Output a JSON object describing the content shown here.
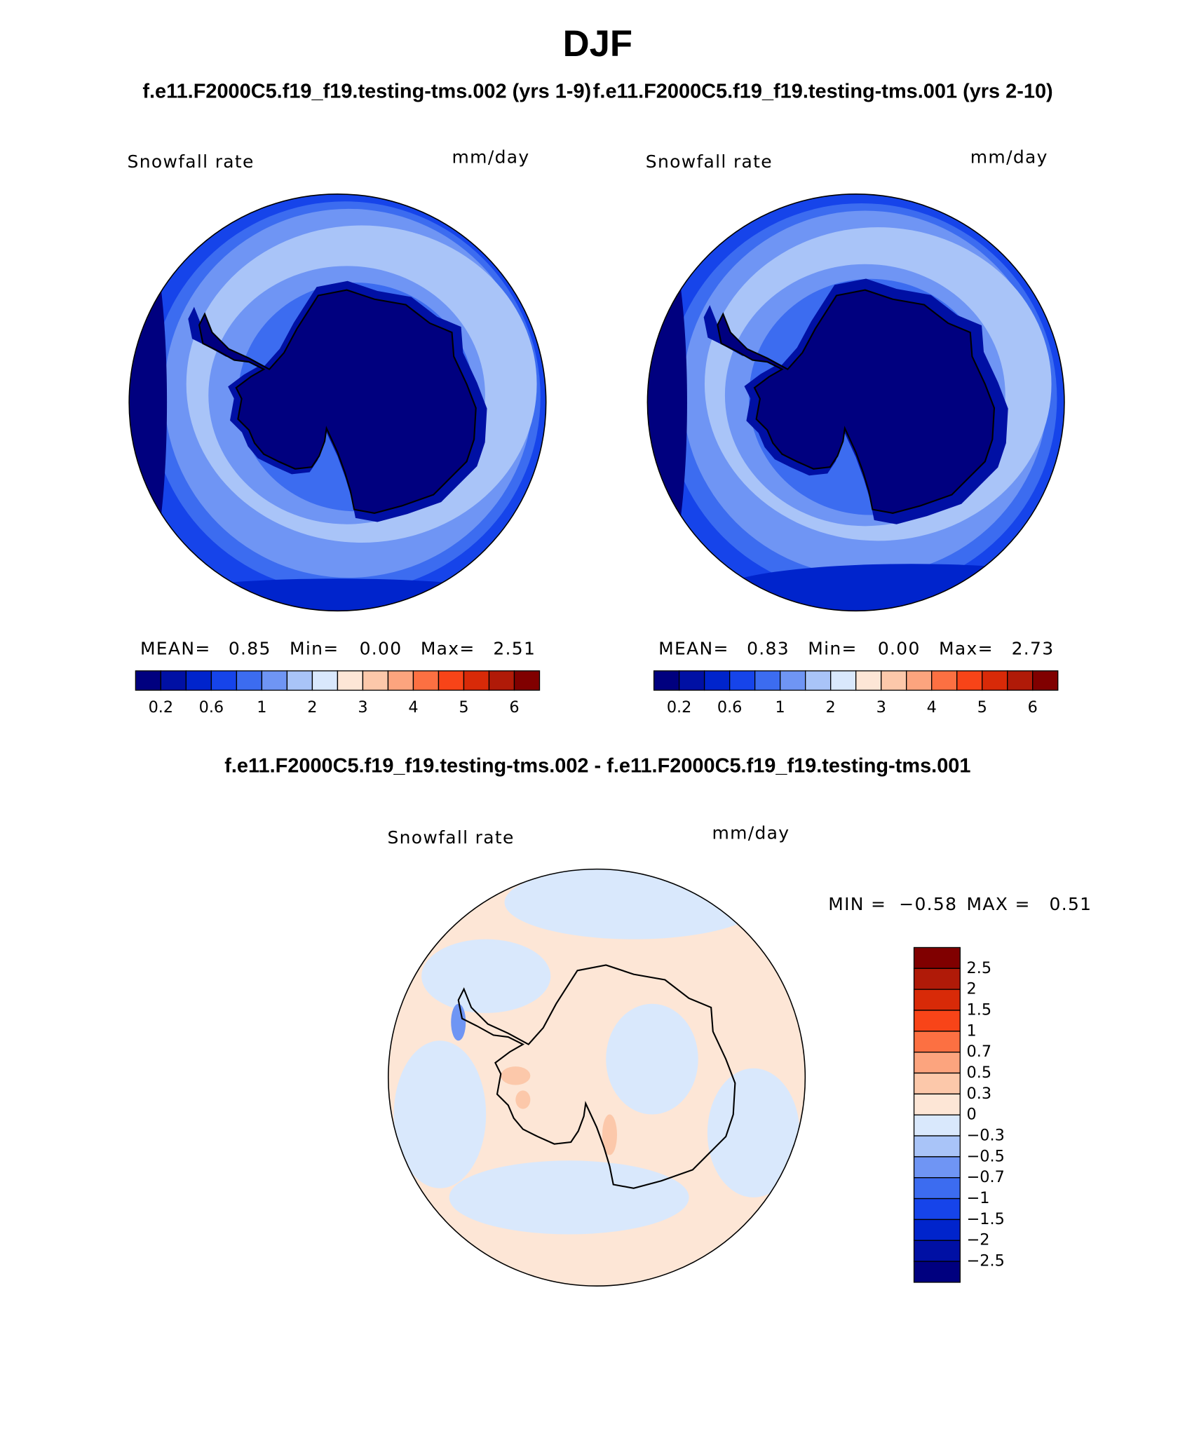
{
  "title": "DJF",
  "subtitle_left": "f.e11.F2000C5.f19_f19.testing-tms.002 (yrs 1-9)",
  "subtitle_right": "f.e11.F2000C5.f19_f19.testing-tms.001 (yrs 2-10)",
  "panels": [
    {
      "variable": "Snowfall rate",
      "units": "mm/day",
      "stats": [
        {
          "label": "MEAN=",
          "value": "0.85"
        },
        {
          "label": "Min=",
          "value": "0.00"
        },
        {
          "label": "Max=",
          "value": "2.51"
        }
      ]
    },
    {
      "variable": "Snowfall rate",
      "units": "mm/day",
      "stats": [
        {
          "label": "MEAN=",
          "value": "0.83"
        },
        {
          "label": "Min=",
          "value": "0.00"
        },
        {
          "label": "Max=",
          "value": "2.73"
        }
      ]
    }
  ],
  "colorbar": {
    "colors": [
      "#00007f",
      "#0010a4",
      "#0024cc",
      "#1644ea",
      "#3c6cf0",
      "#6f95f4",
      "#a9c4f8",
      "#d9e8fc",
      "#fde6d6",
      "#fcc8aa",
      "#fca47e",
      "#fc7042",
      "#f84418",
      "#d82a08",
      "#b01a08",
      "#800000"
    ],
    "labels": [
      "0.2",
      "0.6",
      "1",
      "2",
      "3",
      "4",
      "5",
      "6"
    ]
  },
  "diff": {
    "title": "f.e11.F2000C5.f19_f19.testing-tms.002 - f.e11.F2000C5.f19_f19.testing-tms.001",
    "variable": "Snowfall rate",
    "units": "mm/day",
    "min_label": "MIN =",
    "min": "−0.58",
    "max_label": "MAX =",
    "max": "0.51",
    "colorbar": {
      "colors": [
        "#800000",
        "#b01a08",
        "#d82a08",
        "#f84418",
        "#fc7042",
        "#fca47e",
        "#fcc8aa",
        "#fde6d6",
        "#d9e8fc",
        "#a9c4f8",
        "#6f95f4",
        "#3c6cf0",
        "#1644ea",
        "#0024cc",
        "#0010a4",
        "#00007f"
      ],
      "labels": [
        "2.5",
        "2",
        "1.5",
        "1",
        "0.7",
        "0.5",
        "0.3",
        "0",
        "−0.3",
        "−0.5",
        "−0.7",
        "−1",
        "−1.5",
        "−2",
        "−2.5"
      ]
    }
  }
}
